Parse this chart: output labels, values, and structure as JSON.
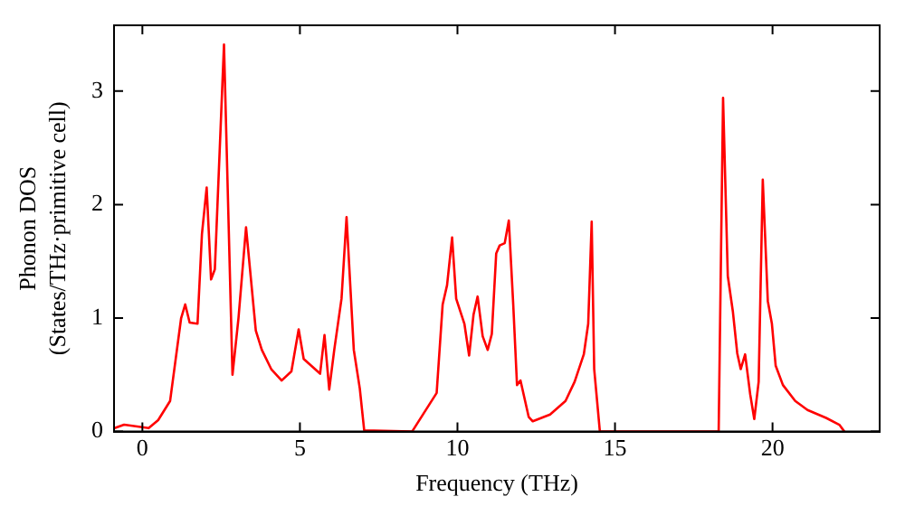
{
  "chart_data": {
    "type": "line",
    "xlabel": "Frequency (THz)",
    "ylabel": "Phonon DOS\n(States/THz·primitive cell)",
    "xlim": [
      -0.9,
      23.4
    ],
    "ylim": [
      0,
      3.58
    ],
    "xticks": [
      0,
      5,
      10,
      15,
      20
    ],
    "yticks": [
      0,
      1,
      2,
      3
    ],
    "grid": false,
    "legend": false,
    "marker": "none",
    "line_style": "solid",
    "series": [
      {
        "color": "#ff0000",
        "x": [
          -0.88,
          -0.58,
          0.2,
          0.5,
          0.88,
          1.23,
          1.36,
          1.5,
          1.75,
          1.89,
          2.04,
          2.18,
          2.3,
          2.59,
          2.86,
          3.05,
          3.29,
          3.6,
          3.79,
          4.09,
          4.42,
          4.73,
          4.96,
          5.12,
          5.64,
          5.78,
          5.93,
          6.09,
          6.32,
          6.48,
          6.71,
          6.9,
          7.04,
          8.56,
          9.34,
          9.53,
          9.67,
          9.83,
          9.96,
          10.22,
          10.37,
          10.51,
          10.64,
          10.8,
          10.96,
          11.09,
          11.23,
          11.34,
          11.5,
          11.63,
          11.77,
          11.89,
          12.0,
          12.26,
          12.39,
          12.94,
          13.43,
          13.72,
          14.01,
          14.15,
          14.26,
          14.34,
          14.52,
          18.29,
          18.43,
          18.58,
          18.74,
          18.88,
          18.99,
          19.13,
          19.29,
          19.42,
          19.56,
          19.69,
          19.85,
          19.98,
          20.1,
          20.33,
          20.72,
          21.11,
          21.7,
          22.12,
          22.28
        ],
        "values": [
          0.03,
          0.06,
          0.03,
          0.1,
          0.27,
          1.0,
          1.12,
          0.96,
          0.95,
          1.74,
          2.15,
          1.34,
          1.43,
          3.41,
          0.5,
          1.0,
          1.8,
          0.89,
          0.72,
          0.55,
          0.45,
          0.53,
          0.9,
          0.64,
          0.51,
          0.85,
          0.37,
          0.72,
          1.17,
          1.89,
          0.72,
          0.38,
          0.01,
          0.0,
          0.34,
          1.12,
          1.29,
          1.71,
          1.17,
          0.95,
          0.67,
          1.03,
          1.19,
          0.84,
          0.72,
          0.86,
          1.57,
          1.64,
          1.66,
          1.86,
          1.12,
          0.41,
          0.45,
          0.13,
          0.09,
          0.15,
          0.27,
          0.44,
          0.68,
          0.95,
          1.85,
          0.55,
          0.0,
          0.0,
          2.94,
          1.37,
          1.06,
          0.69,
          0.55,
          0.68,
          0.33,
          0.11,
          0.44,
          2.22,
          1.15,
          0.95,
          0.58,
          0.41,
          0.27,
          0.19,
          0.12,
          0.06,
          0.0
        ]
      }
    ]
  }
}
